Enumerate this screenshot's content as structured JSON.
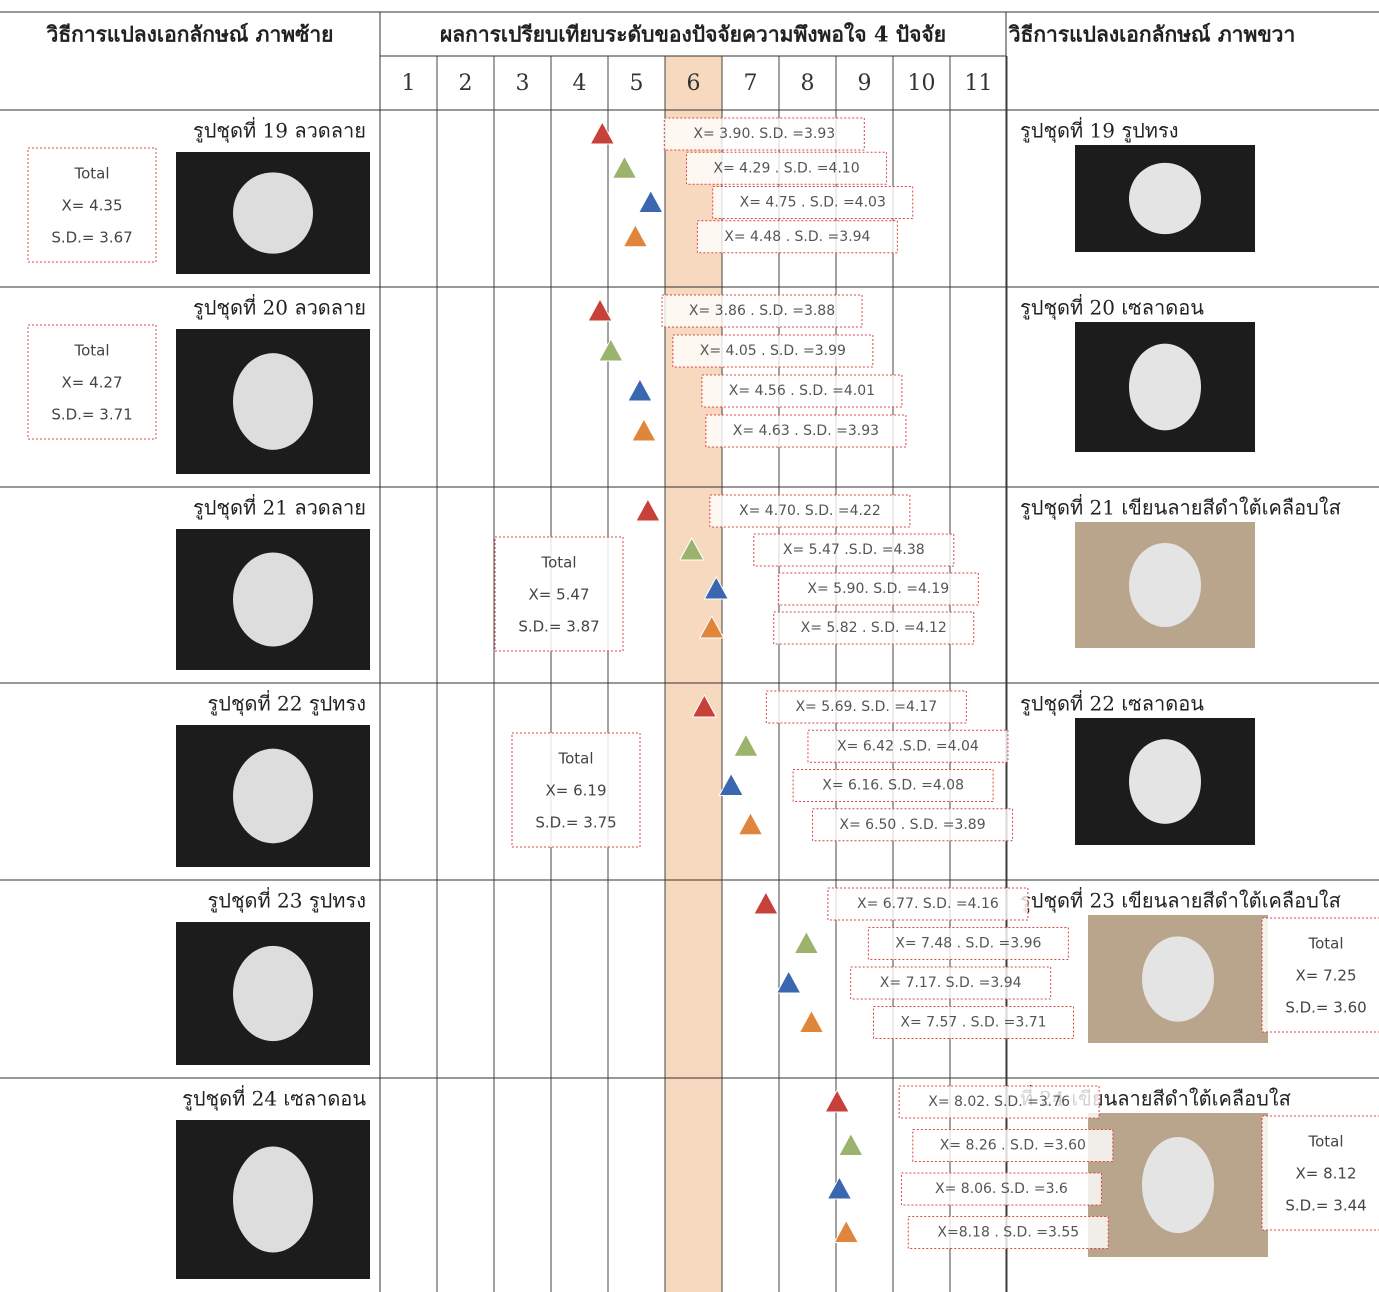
{
  "header": {
    "left": "วิธีการแปลงเอกลักษณ์ ภาพซ้าย",
    "middle": "ผลการเปรียบเทียบระดับของปัจจัยความพึงพอใจ 4 ปัจจัย",
    "right": "วิธีการแปลงเอกลักษณ์ ภาพขวา"
  },
  "scale": [
    1,
    2,
    3,
    4,
    5,
    6,
    7,
    8,
    9,
    10,
    11
  ],
  "rows": [
    {
      "left_label": "รูปชุดที่ 19 ลวดลาย",
      "right_label": "รูปชุดที่ 19 รูปทรง",
      "total": {
        "label": "Total",
        "x": "X= 4.35",
        "sd": "S.D.= 3.67"
      },
      "factors": [
        {
          "label": "X= 3.90. S.D. =3.93",
          "mean": 3.9
        },
        {
          "label": "X= 4.29 . S.D. =4.10",
          "mean": 4.29
        },
        {
          "label": "X= 4.75 . S.D. =4.03",
          "mean": 4.75
        },
        {
          "label": "X= 4.48 . S.D. =3.94",
          "mean": 4.48
        }
      ]
    },
    {
      "left_label": "รูปชุดที่ 20 ลวดลาย",
      "right_label": "รูปชุดที่ 20 เซลาดอน",
      "total": {
        "label": "Total",
        "x": "X= 4.27",
        "sd": "S.D.= 3.71"
      },
      "factors": [
        {
          "label": "X= 3.86 . S.D. =3.88",
          "mean": 3.86
        },
        {
          "label": "X= 4.05 . S.D. =3.99",
          "mean": 4.05
        },
        {
          "label": "X= 4.56 . S.D. =4.01",
          "mean": 4.56
        },
        {
          "label": "X= 4.63 . S.D. =3.93",
          "mean": 4.63
        }
      ]
    },
    {
      "left_label": "รูปชุดที่ 21 ลวดลาย",
      "right_label": "รูปชุดที่ 21 เขียนลายสีดำใต้เคลือบใส",
      "total": {
        "label": "Total",
        "x": "X= 5.47",
        "sd": "S.D.= 3.87"
      },
      "factors": [
        {
          "label": "X= 4.70. S.D. =4.22",
          "mean": 4.7
        },
        {
          "label": "X= 5.47 .S.D. =4.38",
          "mean": 5.47
        },
        {
          "label": "X= 5.90. S.D. =4.19",
          "mean": 5.9
        },
        {
          "label": "X= 5.82 . S.D. =4.12",
          "mean": 5.82
        }
      ]
    },
    {
      "left_label": "รูปชุดที่ 22 รูปทรง",
      "right_label": "รูปชุดที่ 22 เซลาดอน",
      "total": {
        "label": "Total",
        "x": "X= 6.19",
        "sd": "S.D.= 3.75"
      },
      "factors": [
        {
          "label": "X= 5.69. S.D. =4.17",
          "mean": 5.69
        },
        {
          "label": "X= 6.42 .S.D. =4.04",
          "mean": 6.42
        },
        {
          "label": "X= 6.16. S.D. =4.08",
          "mean": 6.16
        },
        {
          "label": "X= 6.50 . S.D. =3.89",
          "mean": 6.5
        }
      ]
    },
    {
      "left_label": "รูปชุดที่ 23 รูปทรง",
      "right_label": "รูปชุดที่ 23 เขียนลายสีดำใต้เคลือบใส",
      "total": {
        "label": "Total",
        "x": "X= 7.25",
        "sd": "S.D.= 3.60"
      },
      "factors": [
        {
          "label": "X= 6.77. S.D. =4.16",
          "mean": 6.77
        },
        {
          "label": "X= 7.48 . S.D. =3.96",
          "mean": 7.48
        },
        {
          "label": "X= 7.17. S.D. =3.94",
          "mean": 7.17
        },
        {
          "label": "X= 7.57 . S.D. =3.71",
          "mean": 7.57
        }
      ]
    },
    {
      "left_label": "รูปชุดที่ 24 เซลาดอน",
      "right_label": "ที่ 24 เขียนลายสีดำใต้เคลือบใส",
      "total": {
        "label": "Total",
        "x": "X= 8.12",
        "sd": "S.D.= 3.44"
      },
      "factors": [
        {
          "label": "X= 8.02. S.D. =3.76",
          "mean": 8.02
        },
        {
          "label": "X= 8.26 . S.D. =3.60",
          "mean": 8.26
        },
        {
          "label": "X= 8.06. S.D. =3.6",
          "mean": 8.06
        },
        {
          "label": "X=8.18 . S.D. =3.55",
          "mean": 8.18
        }
      ]
    }
  ]
}
